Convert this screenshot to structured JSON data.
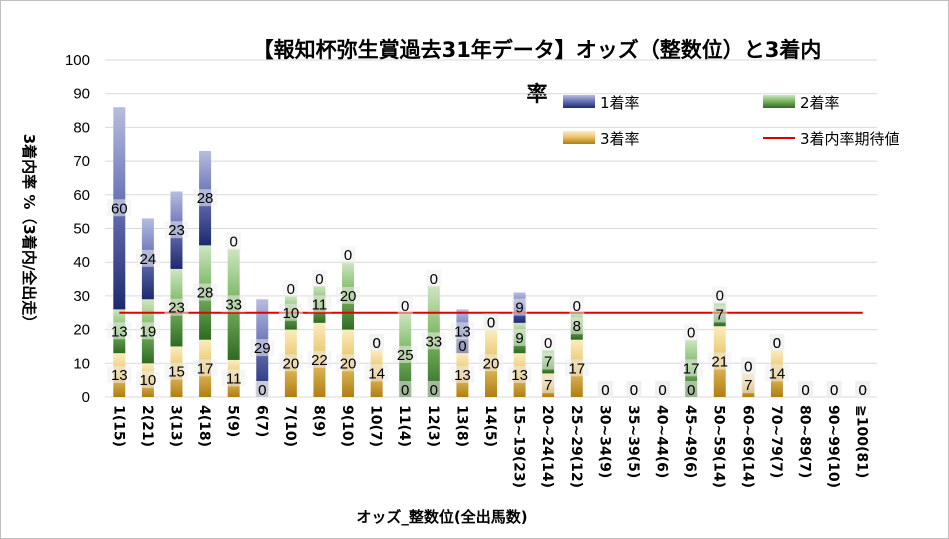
{
  "chart_data": {
    "type": "bar",
    "stacked": true,
    "title_line1": "【報知杯弥生賞過去31年データ】オッズ（整数位）と3着内",
    "title_line2": "率",
    "xlabel": "オッズ_整数位(全出馬数)",
    "ylabel": "3着内率 %（3着内/全出走）",
    "ylim": [
      0,
      100
    ],
    "ytick_step": 10,
    "categories": [
      "1(15)",
      "2(21)",
      "3(13)",
      "4(18)",
      "5(9)",
      "6(7)",
      "7(10)",
      "8(9)",
      "9(10)",
      "10(7)",
      "11(4)",
      "12(3)",
      "13(8)",
      "14(5)",
      "15~19(23)",
      "20~24(14)",
      "25~29(12)",
      "30~34(9)",
      "35~39(5)",
      "40~44(6)",
      "45~49(6)",
      "50~59(14)",
      "60~69(14)",
      "70~79(7)",
      "80~89(7)",
      "90~99(10)",
      "≧100(81)"
    ],
    "series": [
      {
        "name": "1着率",
        "color": "#2f3f8f",
        "values": [
          60,
          24,
          23,
          28,
          0,
          29,
          0,
          0,
          0,
          0,
          0,
          0,
          13,
          0,
          9,
          0,
          0,
          0,
          0,
          0,
          0,
          0,
          0,
          0,
          0,
          0,
          0
        ]
      },
      {
        "name": "2着率",
        "color": "#3f8a2f",
        "values": [
          13,
          19,
          23,
          28,
          33,
          0,
          10,
          11,
          20,
          0,
          25,
          33,
          0,
          0,
          9,
          7,
          8,
          0,
          0,
          0,
          17,
          7,
          0,
          0,
          0,
          0,
          0
        ]
      },
      {
        "name": "3着率",
        "color": "#c9961f",
        "values": [
          13,
          10,
          15,
          17,
          11,
          0,
          20,
          22,
          20,
          14,
          0,
          0,
          13,
          20,
          13,
          7,
          17,
          0,
          0,
          0,
          0,
          21,
          7,
          14,
          0,
          0,
          0
        ]
      }
    ],
    "reference_line": {
      "name": "3着内率期待値",
      "value": 25,
      "color": "#e00000"
    }
  }
}
